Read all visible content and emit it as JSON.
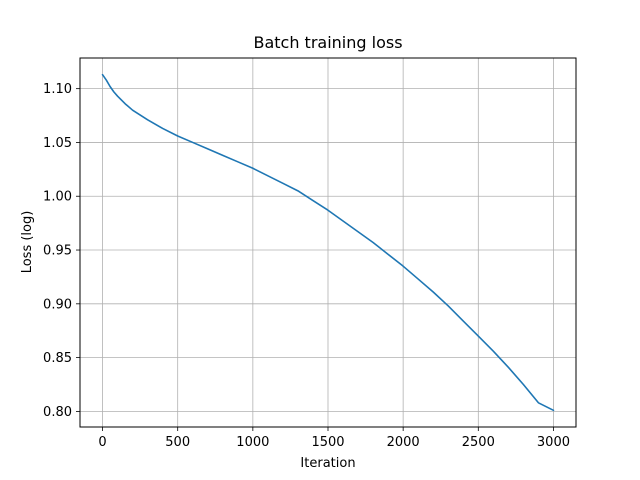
{
  "chart_data": {
    "type": "line",
    "title": "Batch training loss",
    "xlabel": "Iteration",
    "ylabel": "Loss (log)",
    "xlim": [
      -150,
      3150
    ],
    "ylim": [
      0.7855,
      1.1285
    ],
    "xticks": [
      0,
      500,
      1000,
      1500,
      2000,
      2500,
      3000
    ],
    "xtick_labels": [
      "0",
      "500",
      "1000",
      "1500",
      "2000",
      "2500",
      "3000"
    ],
    "yticks": [
      0.8,
      0.85,
      0.9,
      0.95,
      1.0,
      1.05,
      1.1
    ],
    "ytick_labels": [
      "0.80",
      "0.85",
      "0.90",
      "0.95",
      "1.00",
      "1.05",
      "1.10"
    ],
    "grid": true,
    "legend": "none",
    "series": [
      {
        "color": "#1f77b4",
        "x": [
          0,
          25,
          50,
          75,
          100,
          150,
          200,
          300,
          400,
          500,
          600,
          700,
          800,
          900,
          1000,
          1100,
          1200,
          1300,
          1400,
          1500,
          1600,
          1700,
          1800,
          1900,
          2000,
          2100,
          2200,
          2300,
          2400,
          2500,
          2600,
          2700,
          2800,
          2900,
          3000
        ],
        "y": [
          1.113,
          1.108,
          1.102,
          1.097,
          1.093,
          1.086,
          1.08,
          1.071,
          1.063,
          1.056,
          1.05,
          1.044,
          1.038,
          1.032,
          1.026,
          1.019,
          1.012,
          1.005,
          0.996,
          0.987,
          0.977,
          0.967,
          0.957,
          0.946,
          0.935,
          0.923,
          0.911,
          0.898,
          0.884,
          0.87,
          0.856,
          0.841,
          0.825,
          0.808,
          0.801
        ]
      }
    ]
  }
}
